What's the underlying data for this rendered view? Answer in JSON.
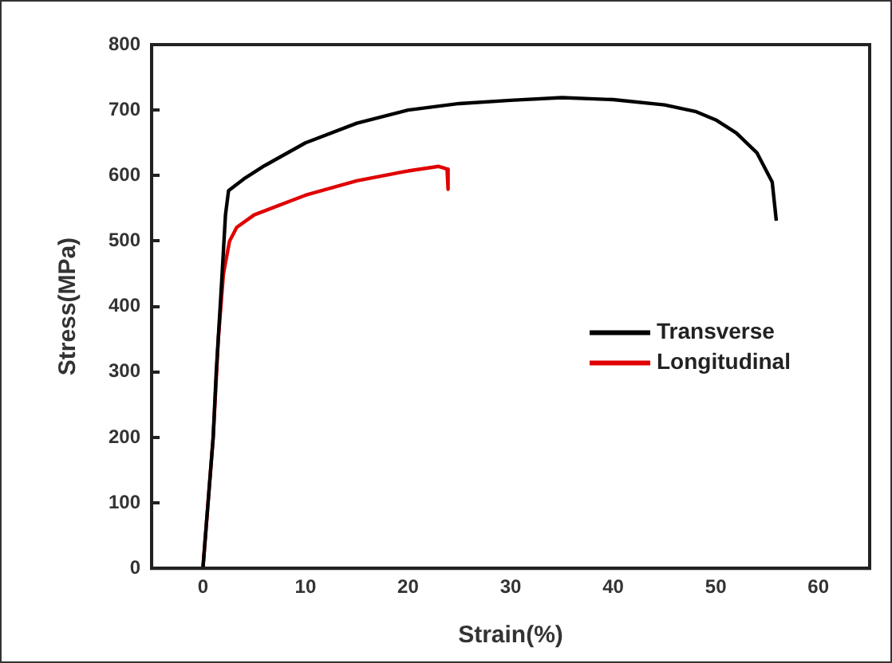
{
  "chart_data": {
    "type": "line",
    "xlabel": "Strain(%)",
    "ylabel": "Stress(MPa)",
    "xlim": [
      -5,
      65
    ],
    "xticks": [
      0,
      10,
      20,
      30,
      40,
      50,
      60
    ],
    "ylim": [
      0,
      800
    ],
    "yticks": [
      0,
      100,
      200,
      300,
      400,
      500,
      600,
      700,
      800
    ],
    "grid": false,
    "legend": "right",
    "marker": "none",
    "line_style": "solid",
    "series": [
      {
        "name": "Transverse",
        "color": "#000000",
        "x": [
          0,
          1,
          1.3,
          1.8,
          2.2,
          2.5,
          4,
          6,
          10,
          15,
          20,
          25,
          30,
          35,
          40,
          45,
          48,
          50,
          52,
          54,
          55.5,
          55.9
        ],
        "values": [
          0,
          200,
          300,
          430,
          540,
          577,
          595,
          615,
          650,
          680,
          700,
          710,
          715,
          719,
          716,
          708,
          698,
          685,
          665,
          635,
          590,
          531
        ]
      },
      {
        "name": "Longitudinal",
        "color": "#e00000",
        "x": [
          0,
          1,
          1.5,
          2,
          2.6,
          3.3,
          5,
          10,
          15,
          20,
          23,
          23.8,
          23.9
        ],
        "values": [
          0,
          200,
          350,
          450,
          500,
          521,
          540,
          570,
          592,
          607,
          614,
          610,
          579
        ]
      }
    ]
  }
}
